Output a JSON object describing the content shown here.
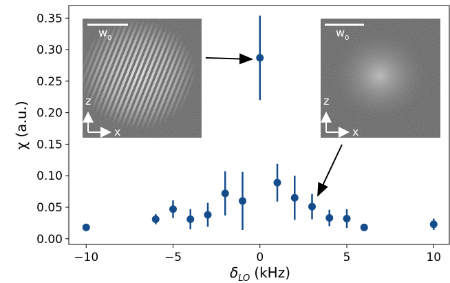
{
  "chart_data": {
    "type": "scatter",
    "xlabel": "δ",
    "xlabel_sub": "LO",
    "xlabel_unit": "(kHz)",
    "ylabel": "χ (a.u.)",
    "x": [
      -10,
      -6,
      -5,
      -4,
      -3,
      -2,
      -1,
      0,
      1,
      2,
      3,
      4,
      5,
      6,
      10
    ],
    "values": [
      0.018,
      0.031,
      0.047,
      0.031,
      0.038,
      0.072,
      0.06,
      0.287,
      0.089,
      0.065,
      0.051,
      0.033,
      0.032,
      0.018,
      0.023
    ],
    "errors": [
      0.003,
      0.008,
      0.014,
      0.016,
      0.019,
      0.035,
      0.046,
      0.067,
      0.03,
      0.035,
      0.02,
      0.013,
      0.015,
      0.003,
      0.009
    ],
    "color": "#144c8c",
    "xlim": [
      -11,
      10.9
    ],
    "ylim": [
      -0.009,
      0.37
    ],
    "xticks": [
      {
        "value": -10,
        "label": "−10"
      },
      {
        "value": -5,
        "label": "−5"
      },
      0,
      5,
      10
    ],
    "yticks": [
      {
        "value": 0,
        "label": "0.00"
      },
      0.05,
      {
        "value": 0.1,
        "label": "0.10"
      },
      0.15,
      {
        "value": 0.2,
        "label": "0.20"
      },
      0.25,
      {
        "value": 0.3,
        "label": "0.30"
      },
      0.35
    ],
    "insets": [
      {
        "scale_label": "w",
        "scale_sub": "0",
        "axis_z": "z",
        "axis_x": "x"
      },
      {
        "scale_label": "w",
        "scale_sub": "0",
        "axis_z": "z",
        "axis_x": "x"
      }
    ]
  }
}
